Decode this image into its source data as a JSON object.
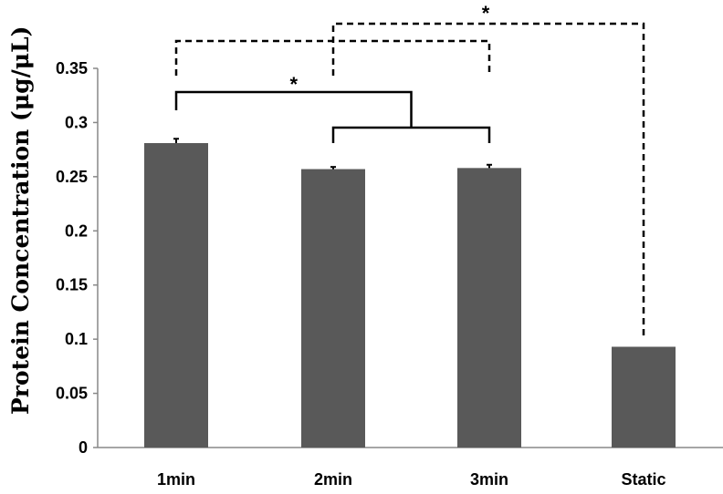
{
  "chart_data": {
    "type": "bar",
    "categories": [
      "1min",
      "2min",
      "3min",
      "Static"
    ],
    "values": [
      0.281,
      0.257,
      0.258,
      0.093
    ],
    "errors": [
      0.004,
      0.002,
      0.003,
      0
    ],
    "ylabel": "Protein Concentration (μg/μL)",
    "xlabel": "",
    "ylim": [
      0,
      0.35
    ],
    "yticks": [
      "0",
      "0.05",
      "0.1",
      "0.15",
      "0.2",
      "0.25",
      "0.3",
      "0.35"
    ],
    "grid": false,
    "bar_color": "#595959",
    "significance": [
      {
        "label": "*",
        "style": "solid",
        "groups": [
          "1min",
          "2min + 3min"
        ]
      },
      {
        "label": "*",
        "style": "dashed",
        "groups": [
          "1min + 3min",
          "Static"
        ]
      }
    ]
  }
}
